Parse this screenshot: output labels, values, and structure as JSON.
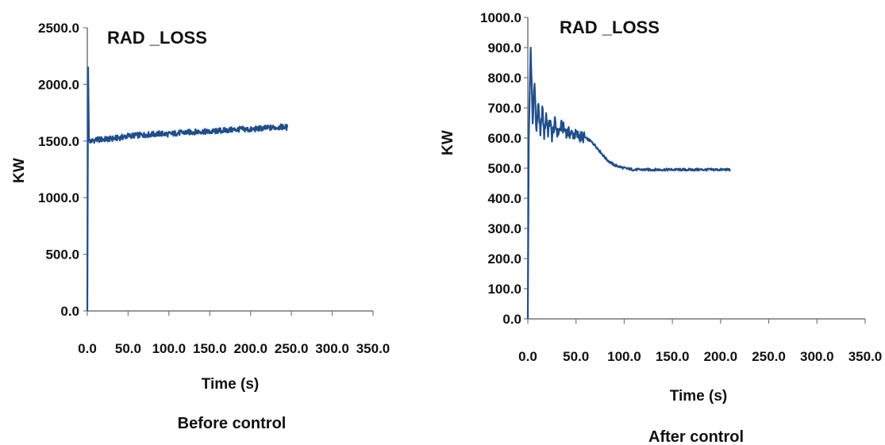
{
  "chart_data": [
    {
      "type": "line",
      "title": "RAD _LOSS",
      "xlabel": "Time (s)",
      "ylabel": "KW",
      "caption": "Before control",
      "xlim": [
        0,
        350
      ],
      "ylim": [
        0,
        2500
      ],
      "x_ticks": [
        "0.0",
        "50.0",
        "100.0",
        "150.0",
        "200.0",
        "250.0",
        "300.0",
        "350.0"
      ],
      "y_ticks": [
        "0.0",
        "500.0",
        "1000.0",
        "1500.0",
        "2000.0",
        "2500.0"
      ],
      "line_color": "#1f4e8c",
      "series": [
        {
          "x": [
            0,
            1,
            2,
            5,
            10,
            20,
            30,
            40,
            50,
            60,
            70,
            80,
            90,
            100,
            110,
            120,
            130,
            140,
            150,
            160,
            170,
            180,
            190,
            200,
            210,
            220,
            230,
            240,
            245
          ],
          "y": [
            0,
            2150,
            1500,
            1500,
            1510,
            1515,
            1520,
            1530,
            1545,
            1550,
            1555,
            1560,
            1565,
            1560,
            1570,
            1575,
            1580,
            1585,
            1580,
            1590,
            1595,
            1600,
            1605,
            1600,
            1610,
            1615,
            1620,
            1625,
            1620
          ]
        }
      ]
    },
    {
      "type": "line",
      "title": "RAD _LOSS",
      "xlabel": "Time (s)",
      "ylabel": "KW",
      "caption": "After control",
      "xlim": [
        0,
        350
      ],
      "ylim": [
        0,
        1000
      ],
      "x_ticks": [
        "0.0",
        "50.0",
        "100.0",
        "150.0",
        "200.0",
        "250.0",
        "300.0",
        "350.0"
      ],
      "y_ticks": [
        "0.0",
        "100.0",
        "200.0",
        "300.0",
        "400.0",
        "500.0",
        "600.0",
        "700.0",
        "800.0",
        "900.0",
        "1000.0"
      ],
      "line_color": "#1f4e8c",
      "series": [
        {
          "x": [
            0,
            1,
            3,
            5,
            7,
            9,
            11,
            13,
            15,
            17,
            19,
            21,
            23,
            25,
            28,
            31,
            35,
            40,
            45,
            50,
            55,
            60,
            65,
            70,
            75,
            80,
            85,
            90,
            95,
            100,
            110,
            120,
            130,
            140,
            150,
            160,
            170,
            180,
            190,
            200,
            210
          ],
          "y": [
            0,
            600,
            900,
            650,
            780,
            620,
            720,
            600,
            700,
            610,
            680,
            620,
            660,
            605,
            650,
            615,
            640,
            620,
            615,
            610,
            605,
            600,
            590,
            575,
            555,
            535,
            520,
            510,
            505,
            500,
            495,
            495,
            495,
            495,
            495,
            495,
            495,
            495,
            495,
            495,
            495
          ]
        }
      ]
    }
  ]
}
